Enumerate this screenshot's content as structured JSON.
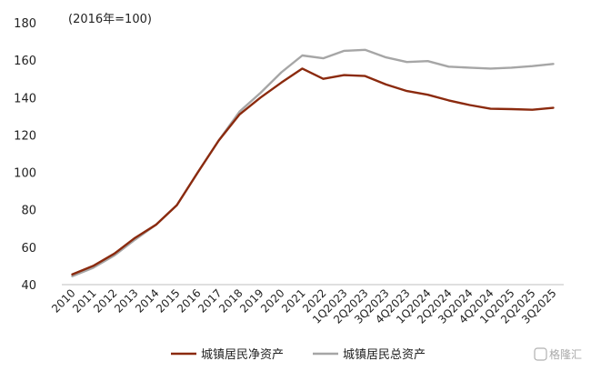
{
  "chart_data": {
    "type": "line",
    "unit_label": "(2016年=100)",
    "categories": [
      "2010",
      "2011",
      "2012",
      "2013",
      "2014",
      "2015",
      "2016",
      "2017",
      "2018",
      "2019",
      "2020",
      "2021",
      "2022",
      "1Q2023",
      "2Q2023",
      "3Q2023",
      "4Q2023",
      "1Q2024",
      "2Q2024",
      "3Q2024",
      "4Q2024",
      "1Q2025",
      "2Q2025",
      "3Q2025"
    ],
    "ylim": [
      40,
      180
    ],
    "yticks": [
      40,
      60,
      80,
      100,
      120,
      140,
      160,
      180
    ],
    "grid": false,
    "legend_position": "bottom",
    "series": [
      {
        "name": "城镇居民净资产",
        "color": "#8B2A0E",
        "values": [
          45.5,
          50,
          56.5,
          65,
          72,
          82.5,
          100,
          117,
          131,
          140,
          148,
          155.5,
          150,
          152,
          151.5,
          147,
          143.5,
          141.5,
          138.5,
          136,
          134,
          133.8,
          133.5,
          134.5
        ]
      },
      {
        "name": "城镇居民总资产",
        "color": "#A6A6A6",
        "values": [
          44.5,
          49,
          55.5,
          64,
          72,
          82.5,
          100,
          117,
          132.5,
          142.5,
          153.5,
          162.5,
          161,
          165,
          165.5,
          161.5,
          159,
          159.5,
          156.5,
          156,
          155.5,
          156,
          156.8,
          158
        ]
      }
    ]
  },
  "watermark": "格隆汇"
}
